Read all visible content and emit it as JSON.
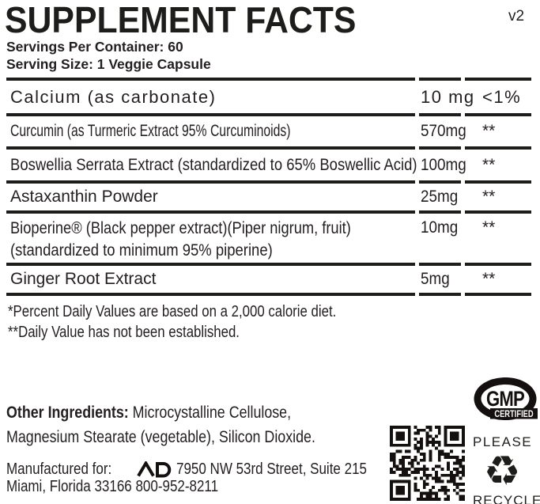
{
  "header": {
    "title": "SUPPLEMENT FACTS",
    "version": "v2",
    "servings_per_container": "Servings Per Container: 60",
    "serving_size": "Serving Size: 1 Veggie Capsule"
  },
  "facts_table": {
    "rows": [
      {
        "name": "Calcium  (as carbonate)",
        "amount": "10 mg",
        "daily_value": "<1%"
      },
      {
        "name": "Curcumin (as Turmeric Extract 95% Curcuminoids)",
        "amount": "570mg",
        "daily_value": "**"
      },
      {
        "name": "Boswellia Serrata Extract (standardized to 65% Boswellic Acid)",
        "amount": "100mg",
        "daily_value": "**"
      },
      {
        "name": "Astaxanthin Powder",
        "amount": "25mg",
        "daily_value": "**"
      },
      {
        "name": "Bioperine® (Black pepper extract)(Piper nigrum, fruit)",
        "name_line2": "(standardized to minimum 95% piperine)",
        "amount": "10mg",
        "daily_value": "**"
      },
      {
        "name": "Ginger Root Extract",
        "amount": "5mg",
        "daily_value": "**"
      }
    ],
    "footnotes": [
      "*Percent Daily Values are based on a 2,000 calorie diet.",
      "**Daily Value has not been established."
    ]
  },
  "other_ingredients": {
    "label": "Other Ingredients:",
    "line1_rest": " Microcystalline Cellulose,",
    "line2": "Magnesium Stearate (vegetable), Silicon Dioxide."
  },
  "manufactured_for": {
    "label": "Manufactured for:",
    "address_line1": "7950 NW 53rd Street, Suite 215",
    "address_line2": "Miami, Florida 33166 800-952-8211"
  },
  "badges": {
    "gmp": {
      "title": "GMP",
      "subtitle": "CERTIFIED"
    },
    "recycle": {
      "top_text": "PLEASE",
      "bottom_text": "RECYCLE",
      "symbol": "♻"
    }
  },
  "colors": {
    "text": "#231f20",
    "rule": "#1d1d1b",
    "background": "#ffffff"
  }
}
